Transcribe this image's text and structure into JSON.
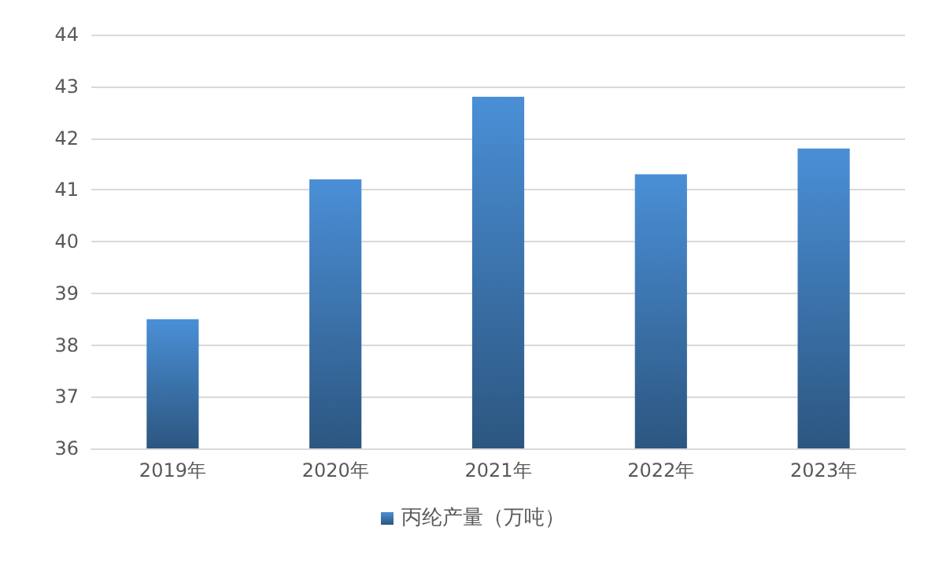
{
  "chart_data": {
    "type": "bar",
    "categories": [
      "2019年",
      "2020年",
      "2021年",
      "2022年",
      "2023年"
    ],
    "series": [
      {
        "name": "丙纶产量（万吨）",
        "color": "#4a8fd6",
        "values": [
          38.5,
          41.2,
          42.8,
          41.3,
          41.8
        ]
      }
    ],
    "ylim": [
      36,
      44
    ],
    "yticks": [
      36,
      37,
      38,
      39,
      40,
      41,
      42,
      43,
      44
    ],
    "grid": "y",
    "legend": "bottom"
  }
}
